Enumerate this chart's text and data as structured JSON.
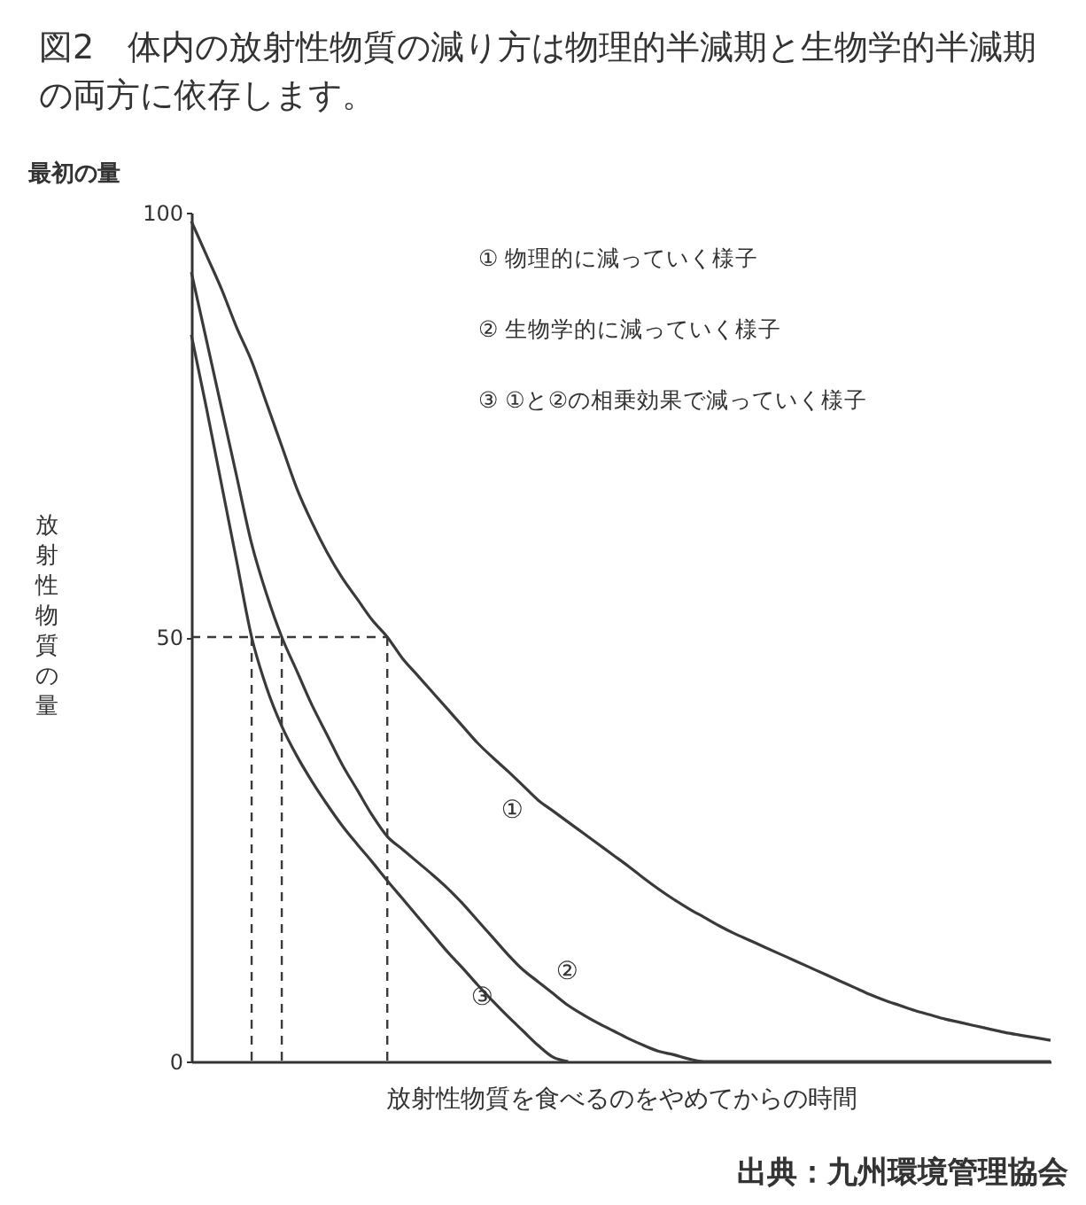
{
  "chart_data": {
    "type": "line",
    "title": "図2　体内の放射性物質の減り方は物理的半減期と生物学的半減期の両方に依存します。",
    "xlabel": "放射性物質を食べるのをやめてからの時間",
    "ylabel": "放射性物質の量",
    "categories": [
      null,
      null,
      null,
      null,
      null,
      null,
      null,
      null,
      null,
      null,
      null,
      null,
      null,
      null,
      null,
      null,
      null,
      null,
      null,
      null,
      null,
      null,
      null,
      null,
      null,
      null,
      null,
      null,
      null,
      null,
      null,
      null,
      null,
      null,
      null,
      null,
      null,
      null,
      null,
      null,
      null,
      null,
      null,
      null,
      null,
      null,
      null,
      null,
      null,
      null,
      null,
      null,
      null,
      null,
      null,
      null,
      null,
      null
    ],
    "ylim": [
      0,
      100
    ],
    "yticks": [
      0,
      50,
      100
    ],
    "series": [
      {
        "name": "①",
        "color": "#3a3a3a",
        "values": [
          99,
          95,
          91,
          86.5,
          82.5,
          77.5,
          72.5,
          67.5,
          63.5,
          60,
          57,
          54.5,
          52,
          50,
          47.5,
          45.5,
          43.5,
          41.5,
          39.5,
          37.5,
          35.8,
          34.2,
          32.5,
          30.8,
          29.5,
          28.2,
          26.9,
          25.6,
          24.3,
          23,
          21.6,
          20.3,
          19.1,
          18,
          17,
          16,
          15.1,
          14.3,
          13.5,
          12.7,
          11.9,
          11.1,
          10.3,
          9.5,
          8.7,
          7.9,
          7.2,
          6.6,
          6,
          5.5,
          5,
          4.6,
          4.2,
          3.8,
          3.4,
          3.1,
          2.8,
          2.5
        ]
      },
      {
        "name": "②",
        "color": "#3a3a3a",
        "values": [
          93,
          85,
          77,
          69,
          61,
          55,
          50,
          46,
          42,
          38.5,
          35,
          32,
          29,
          26.5,
          25,
          23.5,
          22,
          20.4,
          18.6,
          16.6,
          14.6,
          12.6,
          10.8,
          9.4,
          8,
          6.6,
          5.5,
          4.5,
          3.6,
          2.7,
          1.9,
          1.2,
          0.8,
          0.3,
          0,
          0,
          0,
          0,
          0,
          0,
          0,
          0,
          0,
          0,
          0,
          0,
          0,
          0,
          0,
          0,
          0,
          0,
          0,
          0,
          0,
          0,
          0,
          0
        ]
      },
      {
        "name": "③",
        "color": "#3a3a3a",
        "values": [
          85.6,
          77,
          68,
          59,
          50,
          44,
          39.5,
          36,
          33,
          30.3,
          27.8,
          25.6,
          23.5,
          21.3,
          19.2,
          17.1,
          15,
          12.9,
          11,
          9,
          7.1,
          5.3,
          3.6,
          1.9,
          0.5,
          0,
          null,
          null,
          null,
          null,
          null,
          null,
          null,
          null,
          null,
          null,
          null,
          null,
          null,
          null,
          null,
          null,
          null,
          null,
          null,
          null,
          null,
          null,
          null,
          null,
          null,
          null,
          null,
          null,
          null,
          null,
          null,
          null
        ]
      },
      {
        "color": "#3a3a3a",
        "line_style": "dashed",
        "values": [
          50,
          50,
          50,
          50,
          50,
          50,
          50,
          50,
          50,
          50,
          50,
          50,
          50,
          50,
          null,
          null,
          null,
          null,
          null,
          null,
          null,
          null,
          null,
          null,
          null,
          null,
          null,
          null,
          null,
          null,
          null,
          null,
          null,
          null,
          null,
          null,
          null,
          null,
          null,
          null,
          null,
          null,
          null,
          null,
          null,
          null,
          null,
          null,
          null,
          null,
          null,
          null,
          null,
          null,
          null,
          null,
          null,
          null
        ]
      }
    ],
    "annotations": [
      "最初の量",
      "①  物理的に減っていく様子",
      "②  生物学的に減っていく様子",
      "③  ①と②の相乗効果で減っていく様子",
      "出典：九州環境管理協会"
    ]
  }
}
